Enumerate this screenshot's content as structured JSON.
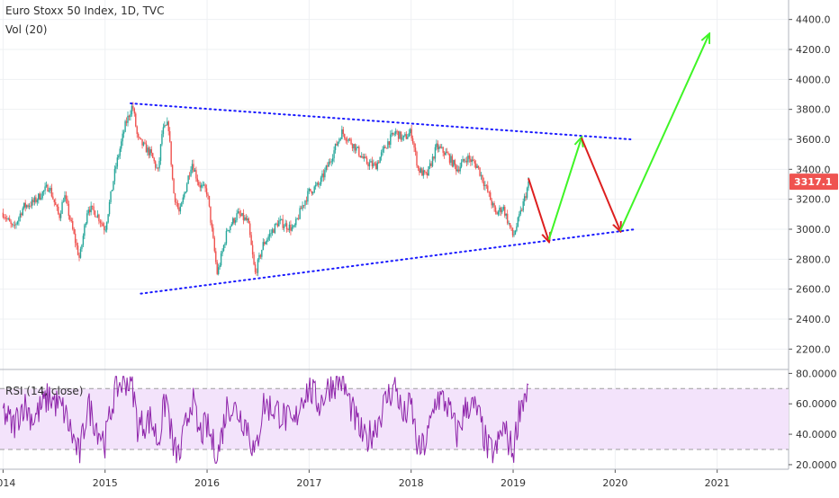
{
  "chart_data": [
    {
      "type": "candlestick",
      "title": "Euro Stoxx 50 Index, 1D, TVC",
      "indicator_label": "Vol (20)",
      "y_axis": {
        "ticks": [
          2200,
          2400,
          2600,
          2800,
          3000,
          3200,
          3400,
          3600,
          3800,
          4000,
          4200,
          4400
        ],
        "tick_labels": [
          "2200.0",
          "2400.0",
          "2600.0",
          "2800.0",
          "3000.0",
          "3200.0",
          "3400.0",
          "3600.0",
          "3800.0",
          "4000.0",
          "4200.0",
          "4400.0"
        ],
        "ylim": [
          2070,
          4530
        ],
        "position": "right"
      },
      "x_axis": {
        "ticks": [
          2014,
          2015,
          2016,
          2017,
          2018,
          2019,
          2020,
          2021
        ],
        "tick_labels": [
          "2014",
          "2015",
          "2016",
          "2017",
          "2018",
          "2019",
          "2020",
          "2021"
        ],
        "xlim": [
          2013.97,
          2021.7
        ]
      },
      "last_price": {
        "value": 3317.1,
        "label": "3317.1",
        "color": "#ef5350"
      },
      "price_path": [
        [
          2014.0,
          3110
        ],
        [
          2014.1,
          3000
        ],
        [
          2014.2,
          3150
        ],
        [
          2014.3,
          3180
        ],
        [
          2014.45,
          3290
        ],
        [
          2014.55,
          3080
        ],
        [
          2014.6,
          3230
        ],
        [
          2014.75,
          2800
        ],
        [
          2014.83,
          3150
        ],
        [
          2014.92,
          3100
        ],
        [
          2015.0,
          3000
        ],
        [
          2015.1,
          3400
        ],
        [
          2015.2,
          3700
        ],
        [
          2015.27,
          3830
        ],
        [
          2015.32,
          3600
        ],
        [
          2015.45,
          3500
        ],
        [
          2015.52,
          3380
        ],
        [
          2015.56,
          3650
        ],
        [
          2015.62,
          3700
        ],
        [
          2015.67,
          3250
        ],
        [
          2015.73,
          3100
        ],
        [
          2015.85,
          3450
        ],
        [
          2015.92,
          3300
        ],
        [
          2016.0,
          3250
        ],
        [
          2016.1,
          2700
        ],
        [
          2016.2,
          3000
        ],
        [
          2016.3,
          3100
        ],
        [
          2016.4,
          3050
        ],
        [
          2016.47,
          2700
        ],
        [
          2016.55,
          2900
        ],
        [
          2016.7,
          3050
        ],
        [
          2016.85,
          3000
        ],
        [
          2016.93,
          3150
        ],
        [
          2017.0,
          3250
        ],
        [
          2017.1,
          3300
        ],
        [
          2017.2,
          3450
        ],
        [
          2017.32,
          3650
        ],
        [
          2017.45,
          3550
        ],
        [
          2017.55,
          3450
        ],
        [
          2017.65,
          3420
        ],
        [
          2017.77,
          3580
        ],
        [
          2017.85,
          3650
        ],
        [
          2017.92,
          3600
        ],
        [
          2018.0,
          3650
        ],
        [
          2018.07,
          3400
        ],
        [
          2018.15,
          3350
        ],
        [
          2018.25,
          3550
        ],
        [
          2018.35,
          3500
        ],
        [
          2018.45,
          3400
        ],
        [
          2018.55,
          3480
        ],
        [
          2018.65,
          3420
        ],
        [
          2018.75,
          3250
        ],
        [
          2018.83,
          3100
        ],
        [
          2018.9,
          3150
        ],
        [
          2019.0,
          2950
        ],
        [
          2019.07,
          3100
        ],
        [
          2019.15,
          3300
        ]
      ],
      "rsi_path": [
        [
          2014.0,
          55
        ],
        [
          2014.1,
          45
        ],
        [
          2014.2,
          60
        ],
        [
          2014.3,
          50
        ],
        [
          2014.45,
          65
        ],
        [
          2014.6,
          55
        ],
        [
          2014.75,
          25
        ],
        [
          2014.83,
          60
        ],
        [
          2014.92,
          45
        ],
        [
          2015.0,
          35
        ],
        [
          2015.1,
          70
        ],
        [
          2015.2,
          76
        ],
        [
          2015.27,
          72
        ],
        [
          2015.32,
          45
        ],
        [
          2015.45,
          50
        ],
        [
          2015.52,
          35
        ],
        [
          2015.6,
          65
        ],
        [
          2015.67,
          30
        ],
        [
          2015.73,
          25
        ],
        [
          2015.85,
          65
        ],
        [
          2015.92,
          40
        ],
        [
          2016.0,
          45
        ],
        [
          2016.1,
          25
        ],
        [
          2016.2,
          60
        ],
        [
          2016.3,
          55
        ],
        [
          2016.4,
          45
        ],
        [
          2016.47,
          25
        ],
        [
          2016.55,
          60
        ],
        [
          2016.7,
          55
        ],
        [
          2016.85,
          45
        ],
        [
          2016.93,
          65
        ],
        [
          2017.0,
          70
        ],
        [
          2017.1,
          60
        ],
        [
          2017.2,
          72
        ],
        [
          2017.32,
          76
        ],
        [
          2017.45,
          50
        ],
        [
          2017.55,
          35
        ],
        [
          2017.65,
          45
        ],
        [
          2017.77,
          65
        ],
        [
          2017.85,
          72
        ],
        [
          2017.92,
          50
        ],
        [
          2018.0,
          60
        ],
        [
          2018.07,
          28
        ],
        [
          2018.15,
          35
        ],
        [
          2018.25,
          65
        ],
        [
          2018.35,
          60
        ],
        [
          2018.45,
          40
        ],
        [
          2018.55,
          60
        ],
        [
          2018.65,
          55
        ],
        [
          2018.75,
          30
        ],
        [
          2018.83,
          28
        ],
        [
          2018.9,
          45
        ],
        [
          2019.0,
          28
        ],
        [
          2019.07,
          60
        ],
        [
          2019.15,
          70
        ]
      ],
      "annotations": {
        "trendlines": [
          {
            "color": "#1a1aff",
            "style": "dotted",
            "from": [
              2015.25,
              3840
            ],
            "to": [
              2020.15,
              3600
            ]
          },
          {
            "color": "#1a1aff",
            "style": "dotted",
            "from": [
              2015.35,
              2570
            ],
            "to": [
              2020.2,
              3000
            ]
          }
        ],
        "arrows": [
          {
            "color": "#dd1f1f",
            "from": [
              2019.15,
              3340
            ],
            "to": [
              2019.35,
              2920
            ]
          },
          {
            "color": "#3ff526",
            "from": [
              2019.35,
              2930
            ],
            "to": [
              2019.67,
              3610
            ]
          },
          {
            "color": "#dd1f1f",
            "from": [
              2019.67,
              3610
            ],
            "to": [
              2020.05,
              2990
            ]
          },
          {
            "color": "#3ff526",
            "from": [
              2020.05,
              2990
            ],
            "to": [
              2020.92,
              4300
            ]
          }
        ]
      }
    },
    {
      "type": "line",
      "title": "RSI (14, close)",
      "y_axis": {
        "ticks": [
          20,
          40,
          60,
          80
        ],
        "tick_labels": [
          "20.0000",
          "40.0000",
          "60.0000",
          "80.0000"
        ],
        "ylim": [
          17,
          82
        ],
        "position": "right"
      },
      "bands": {
        "upper": 70,
        "lower": 30,
        "fill": "#f3e3fb",
        "line_color": "#9e9e9e"
      },
      "line_color": "#8e24aa"
    }
  ]
}
